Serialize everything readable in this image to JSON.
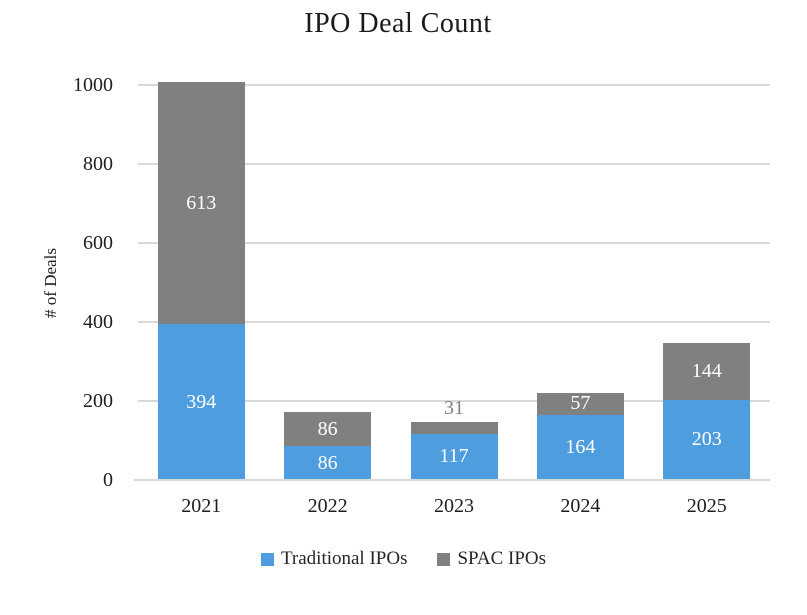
{
  "chart_data": {
    "type": "bar",
    "stacked": true,
    "title": "IPO Deal Count",
    "ylabel": "# of Deals",
    "xlabel": "",
    "categories": [
      "2021",
      "2022",
      "2023",
      "2024",
      "2025"
    ],
    "series": [
      {
        "name": "Traditional IPOs",
        "color": "#4E9DDE",
        "values": [
          394,
          86,
          117,
          164,
          203
        ]
      },
      {
        "name": "SPAC IPOs",
        "color": "#808080",
        "values": [
          613,
          86,
          31,
          57,
          144
        ]
      }
    ],
    "ylim": [
      0,
      1000
    ],
    "y_ticks": [
      0,
      200,
      400,
      600,
      800,
      1000
    ],
    "grid": true,
    "legend_position": "bottom",
    "colors": {
      "gridline": "#D9D9D9",
      "axis_line": "#D9D9D9",
      "axis_text": "#1F1F1F",
      "bar_label_inside": "#FFFFFF",
      "bar_label_outside": "#808080",
      "background": "#FFFFFF"
    }
  }
}
